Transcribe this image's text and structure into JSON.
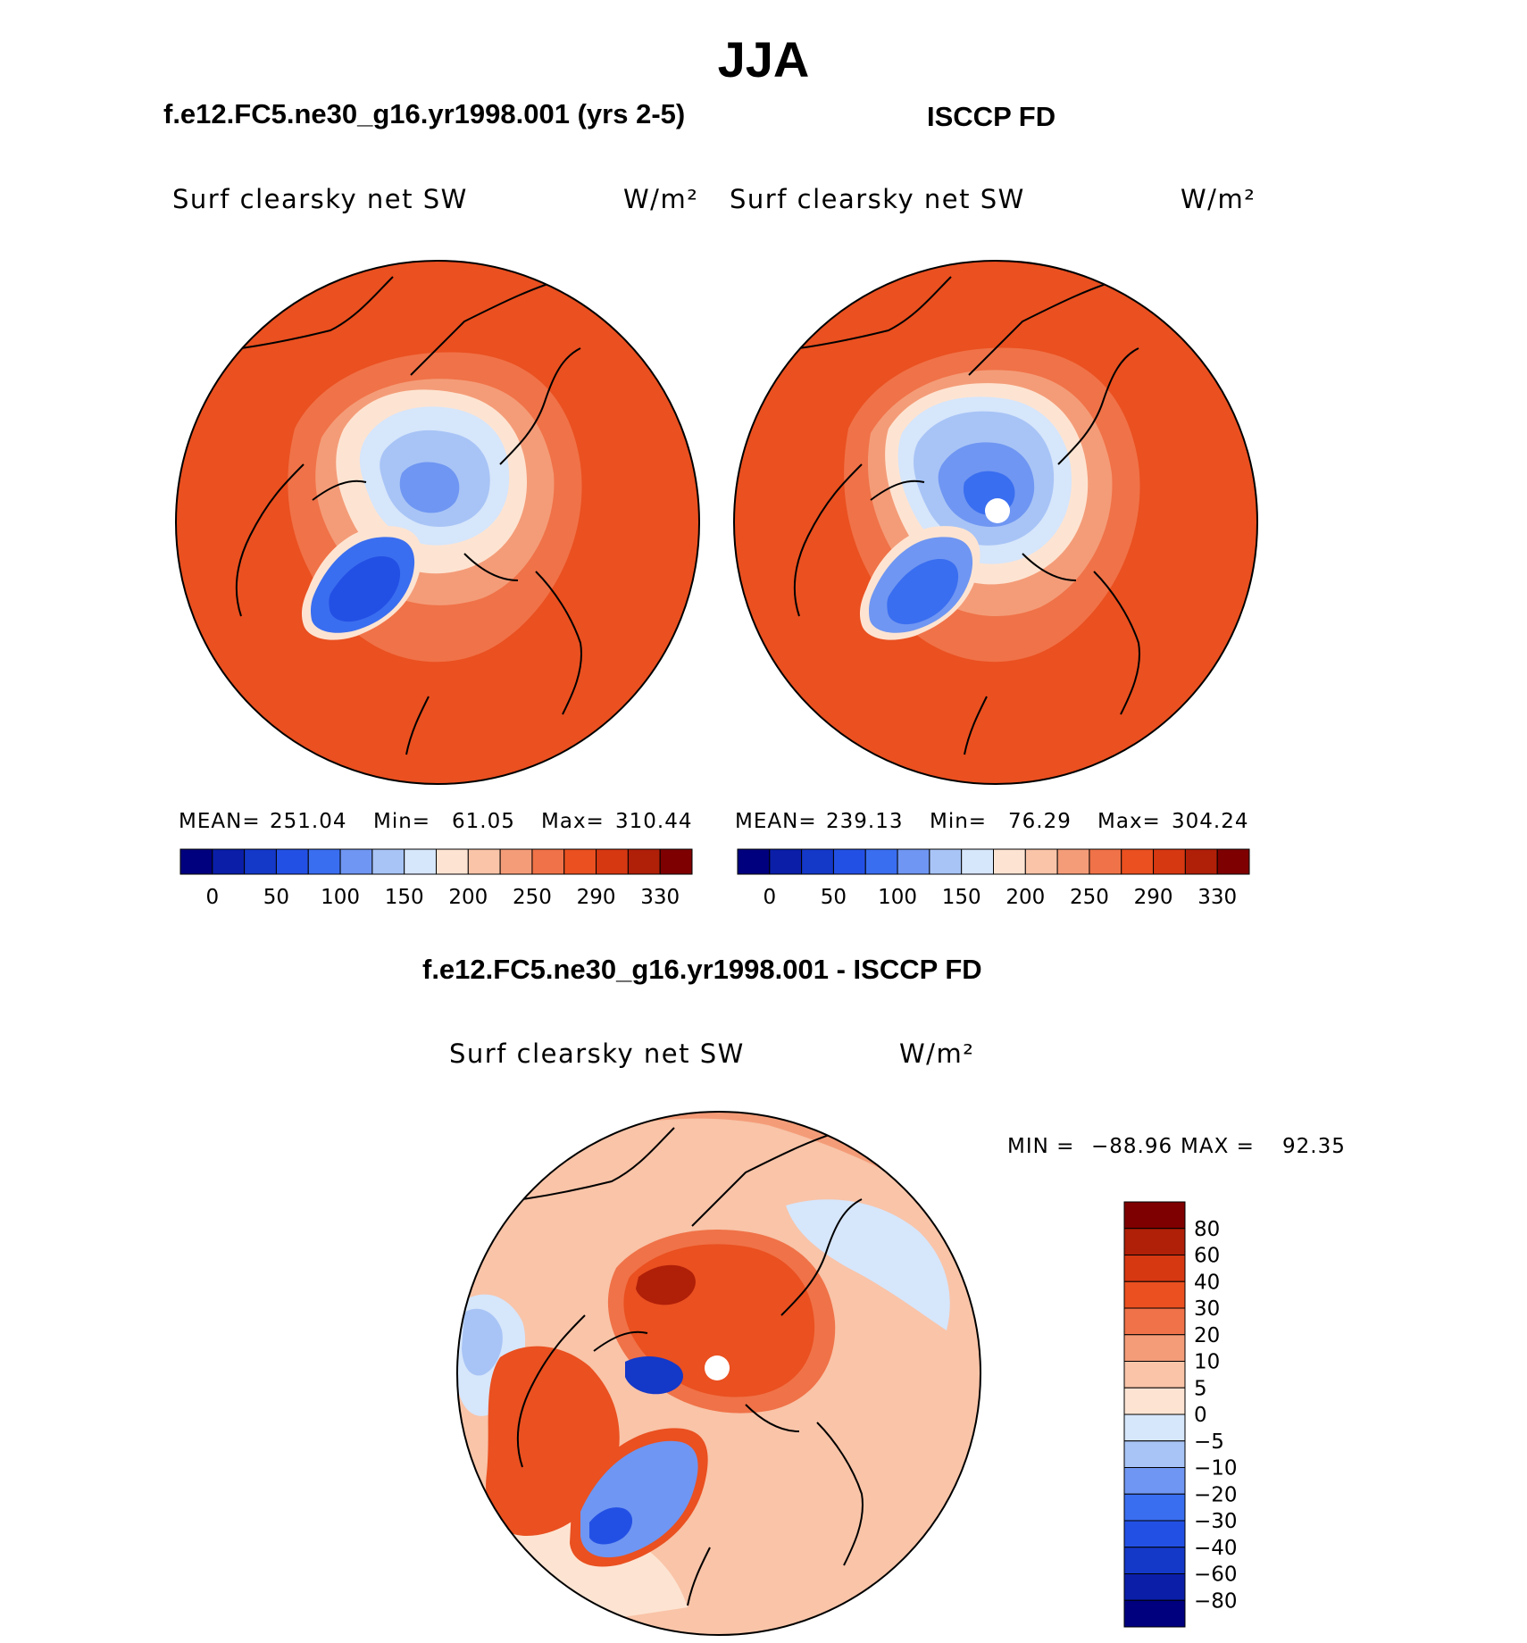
{
  "figure": {
    "title": "JJA",
    "colors": {
      "level_colors": [
        "#00007f",
        "#0a1ea8",
        "#1438c8",
        "#2350e4",
        "#3a6ef0",
        "#6f96f2",
        "#a8c4f6",
        "#d6e6fb",
        "#fde4d2",
        "#f9c4a8",
        "#f49c78",
        "#f07248",
        "#ea5020",
        "#d63812",
        "#b01f08",
        "#7f0000"
      ],
      "diff_colors": [
        "#00007f",
        "#0a1ea8",
        "#1438c8",
        "#2350e4",
        "#3a6ef0",
        "#6f96f2",
        "#a8c4f6",
        "#d6e6fb",
        "#fde4d2",
        "#f9c4a8",
        "#f49c78",
        "#f07248",
        "#ea5020",
        "#d63812",
        "#b01f08",
        "#7f0000"
      ],
      "coast": "#000000"
    }
  },
  "chart_data": [
    {
      "type": "heatmap",
      "projection": "north-polar-stereographic",
      "title": "f.e12.FC5.ne30_g16.yr1998.001 (yrs 2-5)",
      "variable_label": "Surf clearsky net SW",
      "units_label": "W/m²",
      "stats": {
        "mean_label": "MEAN=",
        "mean": "251.04",
        "min_label": "Min=",
        "min": "61.05",
        "max_label": "Max=",
        "max": "310.44"
      },
      "colorbar": {
        "orientation": "horizontal",
        "tick_labels": [
          "0",
          "50",
          "100",
          "150",
          "200",
          "250",
          "290",
          "330"
        ],
        "levels": [
          0,
          25,
          50,
          75,
          100,
          125,
          150,
          175,
          200,
          225,
          250,
          270,
          290,
          310,
          330
        ]
      }
    },
    {
      "type": "heatmap",
      "projection": "north-polar-stereographic",
      "title": "ISCCP FD",
      "variable_label": "Surf clearsky net SW",
      "units_label": "W/m²",
      "stats": {
        "mean_label": "MEAN=",
        "mean": "239.13",
        "min_label": "Min=",
        "min": "76.29",
        "max_label": "Max=",
        "max": "304.24"
      },
      "colorbar": {
        "orientation": "horizontal",
        "tick_labels": [
          "0",
          "50",
          "100",
          "150",
          "200",
          "250",
          "290",
          "330"
        ],
        "levels": [
          0,
          25,
          50,
          75,
          100,
          125,
          150,
          175,
          200,
          225,
          250,
          270,
          290,
          310,
          330
        ]
      }
    },
    {
      "type": "heatmap",
      "projection": "north-polar-stereographic",
      "title": "f.e12.FC5.ne30_g16.yr1998.001 - ISCCP FD",
      "variable_label": "Surf clearsky net SW",
      "units_label": "W/m²",
      "stats": {
        "min_label": "MIN =",
        "min": "−88.96",
        "max_label": "MAX =",
        "max": "92.35"
      },
      "colorbar": {
        "orientation": "vertical",
        "tick_labels": [
          "80",
          "60",
          "40",
          "30",
          "20",
          "10",
          "5",
          "0",
          "−5",
          "−10",
          "−20",
          "−30",
          "−40",
          "−60",
          "−80"
        ],
        "levels": [
          80,
          60,
          40,
          30,
          20,
          10,
          5,
          0,
          -5,
          -10,
          -20,
          -30,
          -40,
          -60,
          -80
        ]
      }
    }
  ]
}
